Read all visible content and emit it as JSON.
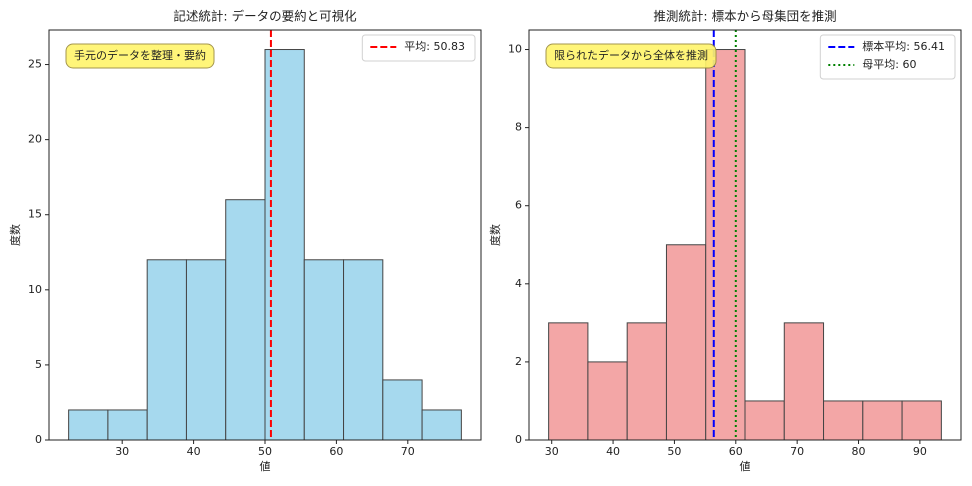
{
  "chart_data": [
    {
      "type": "histogram",
      "title": "記述統計: データの要約と可視化",
      "xlabel": "値",
      "ylabel": "度数",
      "bins": [
        22.5,
        28,
        33.5,
        39,
        44.5,
        50,
        55.5,
        61,
        66.5,
        72,
        77.5
      ],
      "values": [
        2,
        2,
        12,
        12,
        16,
        26,
        12,
        12,
        4,
        2
      ],
      "color": "#a6d9ee",
      "edgecolor": "#444444",
      "xlim": [
        19.75,
        80.25
      ],
      "xticks": [
        30,
        40,
        50,
        60,
        70
      ],
      "ylim": [
        0,
        27.3
      ],
      "yticks": [
        0,
        5,
        10,
        15,
        20,
        25
      ],
      "vlines": [
        {
          "value": 50.83,
          "label": "平均: 50.83",
          "color": "#ff0000",
          "style": "dashed"
        }
      ],
      "annotation": "手元のデータを整理・要約",
      "legend": "upper right"
    },
    {
      "type": "histogram",
      "title": "推測統計: 標本から母集団を推測",
      "xlabel": "値",
      "ylabel": "度数",
      "bins": [
        29.5,
        35.9,
        42.3,
        48.7,
        55.1,
        61.5,
        67.9,
        74.3,
        80.7,
        87.1,
        93.5
      ],
      "values": [
        3,
        2,
        3,
        5,
        10,
        1,
        3,
        1,
        1,
        1
      ],
      "color": "#f3a6a6",
      "edgecolor": "#444444",
      "xlim": [
        26.3,
        96.7
      ],
      "xticks": [
        30,
        40,
        50,
        60,
        70,
        80,
        90
      ],
      "ylim": [
        0,
        10.5
      ],
      "yticks": [
        0,
        2,
        4,
        6,
        8,
        10
      ],
      "vlines": [
        {
          "value": 56.41,
          "label": "標本平均: 56.41",
          "color": "#0000ff",
          "style": "dashed"
        },
        {
          "value": 60,
          "label": "母平均: 60",
          "color": "#008000",
          "style": "dotted"
        }
      ],
      "annotation": "限られたデータから全体を推測",
      "legend": "upper right"
    }
  ]
}
